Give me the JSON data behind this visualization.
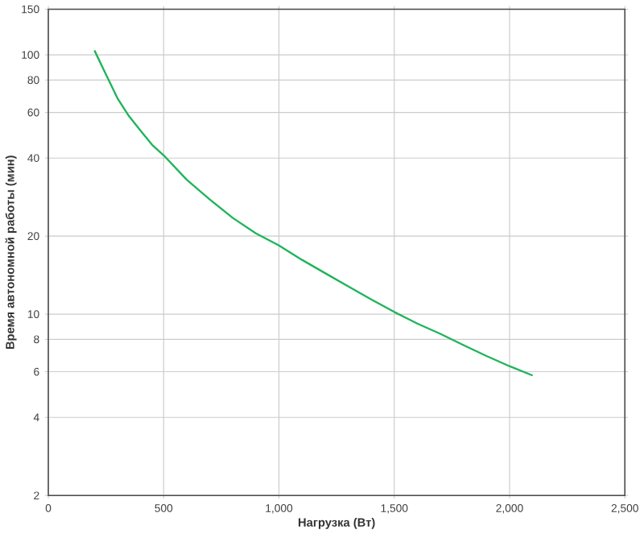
{
  "chart_data": {
    "type": "line",
    "xlabel": "Нагрузка (Вт)",
    "ylabel": "Время автономной работы (мин)",
    "log": "y",
    "grid": true,
    "x": [
      200,
      250,
      300,
      350,
      400,
      450,
      500,
      600,
      700,
      800,
      900,
      1000,
      1100,
      1200,
      1300,
      1400,
      1500,
      1600,
      1700,
      1800,
      1900,
      2000,
      2100
    ],
    "series": [
      {
        "color": "#1fb45a",
        "values": [
          104,
          84,
          68,
          58,
          51,
          45,
          41,
          33,
          27.7,
          23.5,
          20.5,
          18.4,
          16.2,
          14.4,
          12.8,
          11.4,
          10.2,
          9.2,
          8.4,
          7.6,
          6.9,
          6.3,
          5.8
        ]
      }
    ],
    "xlim": [
      0,
      2500
    ],
    "ylim": [
      2,
      150
    ],
    "xticks": [
      0,
      500,
      {
        "value": 1000,
        "label": "1,000"
      },
      {
        "value": 1500,
        "label": "1,500"
      },
      {
        "value": 2000,
        "label": "2,000"
      },
      {
        "value": 2500,
        "label": "2,500"
      }
    ],
    "yticks": [
      2,
      4,
      6,
      8,
      10,
      20,
      40,
      60,
      80,
      100,
      150
    ]
  }
}
